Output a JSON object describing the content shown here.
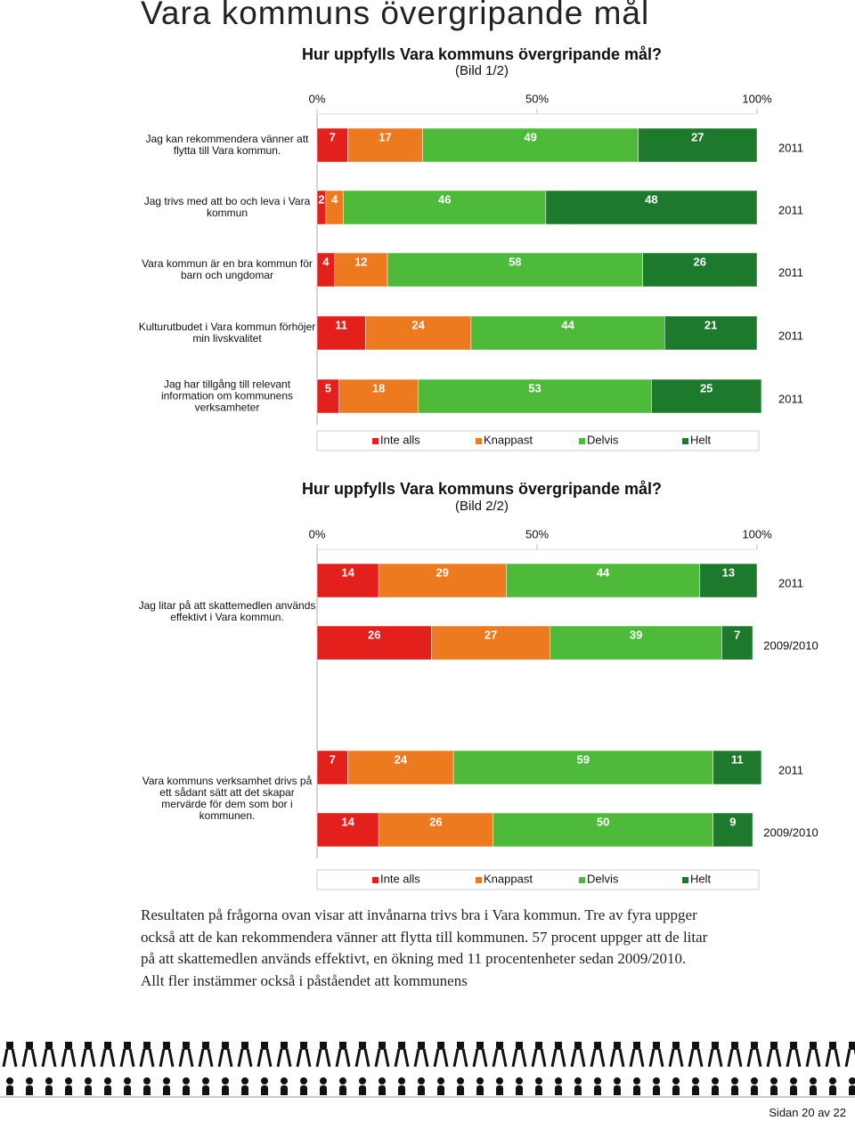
{
  "header": {
    "title": "Vara kommuns övergripande mål"
  },
  "chart_data": [
    {
      "type": "bar",
      "orientation": "horizontal",
      "stacked": true,
      "title": "Hur uppfylls Vara kommuns övergripande mål?",
      "subtitle": "(Bild 1/2)",
      "xlim": [
        0,
        100
      ],
      "xticks": [
        {
          "value": 0,
          "label": "0%"
        },
        {
          "value": 50,
          "label": "50%"
        },
        {
          "value": 100,
          "label": "100%"
        }
      ],
      "categories": [
        "Jag kan rekommendera vänner att flytta till Vara kommun.",
        "Jag trivs med att bo och leva i Vara kommun",
        "Vara kommun är en bra kommun för barn och ungdomar",
        "Kulturutbudet i Vara kommun förhöjer min livskvalitet",
        "Jag har tillgång till relevant information om kommunens verksamheter"
      ],
      "periods": [
        "2011",
        "2011",
        "2011",
        "2011",
        "2011"
      ],
      "series": [
        {
          "name": "Inte alls",
          "color": "#e3201b",
          "values": [
            7,
            2,
            4,
            11,
            5
          ]
        },
        {
          "name": "Knappast",
          "color": "#ee7a1f",
          "values": [
            17,
            4,
            12,
            24,
            18
          ]
        },
        {
          "name": "Delvis",
          "color": "#4dba3a",
          "values": [
            49,
            46,
            58,
            44,
            53
          ]
        },
        {
          "name": "Helt",
          "color": "#1d7a2d",
          "values": [
            27,
            48,
            26,
            21,
            25
          ]
        }
      ],
      "legend": "bottom"
    },
    {
      "type": "bar",
      "orientation": "horizontal",
      "stacked": true,
      "title": "Hur uppfylls Vara kommuns övergripande mål?",
      "subtitle": "(Bild 2/2)",
      "xlim": [
        0,
        100
      ],
      "xticks": [
        {
          "value": 0,
          "label": "0%"
        },
        {
          "value": 50,
          "label": "50%"
        },
        {
          "value": 100,
          "label": "100%"
        }
      ],
      "categories": [
        "Jag litar på att skattemedlen används effektivt i Vara kommun.",
        null,
        "Vara kommuns verksamhet drivs på ett sådant sätt att det skapar mervärde för dem som bor i kommunen.",
        null
      ],
      "periods": [
        "2011",
        "2009/2010",
        "2011",
        "2009/2010"
      ],
      "series": [
        {
          "name": "Inte alls",
          "color": "#e3201b",
          "values": [
            14,
            26,
            7,
            14
          ]
        },
        {
          "name": "Knappast",
          "color": "#ee7a1f",
          "values": [
            29,
            27,
            24,
            26
          ]
        },
        {
          "name": "Delvis",
          "color": "#4dba3a",
          "values": [
            44,
            39,
            59,
            50
          ]
        },
        {
          "name": "Helt",
          "color": "#1d7a2d",
          "values": [
            13,
            7,
            11,
            9
          ]
        }
      ],
      "legend": "bottom"
    }
  ],
  "body": {
    "text": "Resultaten på frågorna ovan visar att invånarna trivs bra i Vara kommun. Tre av fyra uppger också att de kan rekommendera vänner att flytta till kommunen. 57 procent uppger att de litar på att skattemedlen används effektivt, en ökning med 11 procentenheter sedan 2009/2010. Allt fler instämmer också i påståendet att kommunens"
  },
  "footer": {
    "page": "Sidan 20 av 22"
  }
}
